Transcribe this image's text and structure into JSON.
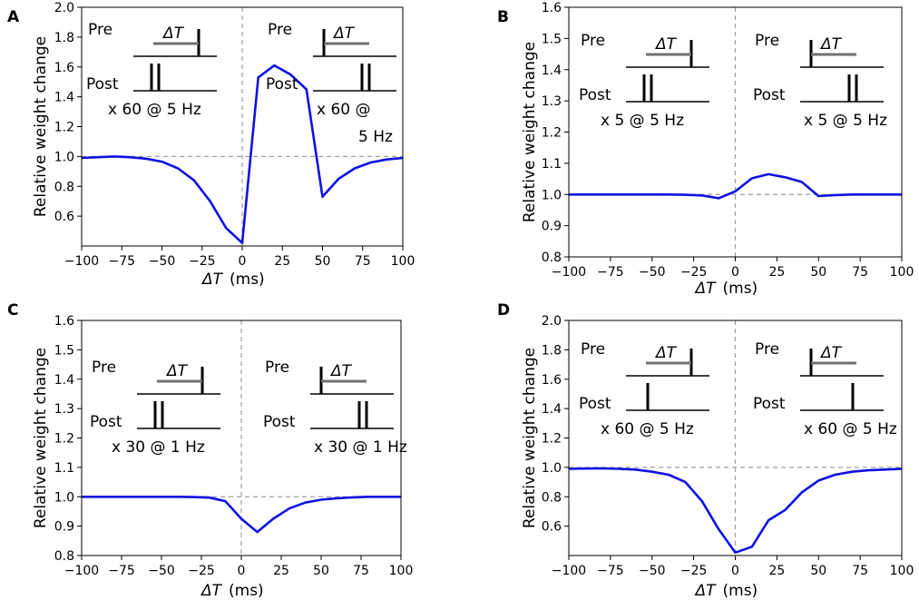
{
  "chart_data": [
    {
      "panel_label": "A",
      "type": "line",
      "xlabel_sym": "ΔT",
      "xlabel_unit": "(ms)",
      "ylabel": "Relative weight change",
      "xlim": [
        -100,
        100
      ],
      "ylim": [
        0.4,
        2.0
      ],
      "xticks": [
        -100,
        -75,
        -50,
        -25,
        0,
        25,
        50,
        75,
        100
      ],
      "xtick_labels": [
        "−100",
        "−75",
        "−50",
        "−25",
        "0",
        "25",
        "50",
        "75",
        "100"
      ],
      "yticks": [
        0.6,
        0.8,
        1.0,
        1.2,
        1.4,
        1.6,
        1.8,
        2.0
      ],
      "ytick_labels": [
        "0.6",
        "0.8",
        "1.0",
        "1.2",
        "1.4",
        "1.6",
        "1.8",
        "2.0"
      ],
      "baseline": 1.0,
      "color": "#1010e0",
      "series": [
        {
          "name": "weight change",
          "x": [
            -100,
            -90,
            -80,
            -70,
            -60,
            -50,
            -40,
            -30,
            -20,
            -10,
            0,
            10,
            20,
            30,
            40,
            50,
            60,
            70,
            80,
            90,
            100
          ],
          "y": [
            0.99,
            0.995,
            1.0,
            0.995,
            0.985,
            0.965,
            0.92,
            0.84,
            0.7,
            0.52,
            0.42,
            1.53,
            1.61,
            1.55,
            1.45,
            0.73,
            0.85,
            0.92,
            0.96,
            0.98,
            0.99
          ]
        }
      ],
      "insets": {
        "left": {
          "pre": "Pre",
          "post": "Post",
          "delta": "ΔT",
          "rep_line1": "x 60 @ 5 Hz",
          "rep_line2": ""
        },
        "right": {
          "pre": "Pre",
          "post": "Post",
          "delta": "ΔT",
          "rep_line1": "x 60 @",
          "rep_line2": "5 Hz"
        }
      }
    },
    {
      "panel_label": "B",
      "type": "line",
      "xlabel_sym": "ΔT",
      "xlabel_unit": "(ms)",
      "ylabel": "Relative weight change",
      "xlim": [
        -100,
        100
      ],
      "ylim": [
        0.8,
        1.6
      ],
      "xticks": [
        -100,
        -75,
        -50,
        -25,
        0,
        25,
        50,
        75,
        100
      ],
      "xtick_labels": [
        "−100",
        "−75",
        "−50",
        "−25",
        "0",
        "25",
        "50",
        "75",
        "100"
      ],
      "yticks": [
        0.8,
        0.9,
        1.0,
        1.1,
        1.2,
        1.3,
        1.4,
        1.5,
        1.6
      ],
      "ytick_labels": [
        "0.8",
        "0.9",
        "1.0",
        "1.1",
        "1.2",
        "1.3",
        "1.4",
        "1.5",
        "1.6"
      ],
      "baseline": 1.0,
      "color": "#1010e0",
      "series": [
        {
          "name": "weight change",
          "x": [
            -100,
            -90,
            -80,
            -70,
            -60,
            -50,
            -40,
            -30,
            -20,
            -10,
            0,
            10,
            20,
            30,
            40,
            50,
            60,
            70,
            80,
            90,
            100
          ],
          "y": [
            1.0,
            1.0,
            1.0,
            1.0,
            1.0,
            1.0,
            1.0,
            0.999,
            0.997,
            0.988,
            1.01,
            1.052,
            1.065,
            1.055,
            1.04,
            0.995,
            0.998,
            1.0,
            1.0,
            1.0,
            1.0
          ]
        }
      ],
      "insets": {
        "left": {
          "pre": "Pre",
          "post": "Post",
          "delta": "ΔT",
          "rep_line1": "x 5 @ 5 Hz",
          "rep_line2": ""
        },
        "right": {
          "pre": "Pre",
          "post": "Post",
          "delta": "ΔT",
          "rep_line1": "x 5 @ 5 Hz",
          "rep_line2": ""
        }
      }
    },
    {
      "panel_label": "C",
      "type": "line",
      "xlabel_sym": "ΔT",
      "xlabel_unit": "(ms)",
      "ylabel": "Relative weight change",
      "xlim": [
        -100,
        100
      ],
      "ylim": [
        0.8,
        1.6
      ],
      "xticks": [
        -100,
        -75,
        -50,
        -25,
        0,
        25,
        50,
        75,
        100
      ],
      "xtick_labels": [
        "−100",
        "−75",
        "−50",
        "−25",
        "0",
        "25",
        "50",
        "75",
        "100"
      ],
      "yticks": [
        0.8,
        0.9,
        1.0,
        1.1,
        1.2,
        1.3,
        1.4,
        1.5,
        1.6
      ],
      "ytick_labels": [
        "0.8",
        "0.9",
        "1.0",
        "1.1",
        "1.2",
        "1.3",
        "1.4",
        "1.5",
        "1.6"
      ],
      "baseline": 1.0,
      "color": "#1010e0",
      "series": [
        {
          "name": "weight change",
          "x": [
            -100,
            -90,
            -80,
            -70,
            -60,
            -50,
            -40,
            -30,
            -20,
            -10,
            0,
            10,
            20,
            30,
            40,
            50,
            60,
            70,
            80,
            90,
            100
          ],
          "y": [
            1.0,
            1.0,
            1.0,
            1.0,
            1.0,
            1.0,
            1.0,
            0.999,
            0.997,
            0.985,
            0.925,
            0.88,
            0.925,
            0.96,
            0.98,
            0.99,
            0.995,
            0.998,
            1.0,
            1.0,
            1.0
          ]
        }
      ],
      "insets": {
        "left": {
          "pre": "Pre",
          "post": "Post",
          "delta": "ΔT",
          "rep_line1": "x 30 @ 1 Hz",
          "rep_line2": ""
        },
        "right": {
          "pre": "Pre",
          "post": "Post",
          "delta": "ΔT",
          "rep_line1": "x 30 @ 1 Hz",
          "rep_line2": ""
        }
      }
    },
    {
      "panel_label": "D",
      "type": "line",
      "xlabel_sym": "ΔT",
      "xlabel_unit": "(ms)",
      "ylabel": "Relative weight change",
      "xlim": [
        -100,
        100
      ],
      "ylim": [
        0.4,
        2.0
      ],
      "xticks": [
        -100,
        -75,
        -50,
        -25,
        0,
        25,
        50,
        75,
        100
      ],
      "xtick_labels": [
        "−100",
        "−75",
        "−50",
        "−25",
        "0",
        "25",
        "50",
        "75",
        "100"
      ],
      "yticks": [
        0.6,
        0.8,
        1.0,
        1.2,
        1.4,
        1.6,
        1.8,
        2.0
      ],
      "ytick_labels": [
        "0.6",
        "0.8",
        "1.0",
        "1.2",
        "1.4",
        "1.6",
        "1.8",
        "2.0"
      ],
      "baseline": 1.0,
      "color": "#1010e0",
      "series": [
        {
          "name": "weight change",
          "x": [
            -100,
            -90,
            -80,
            -70,
            -60,
            -50,
            -40,
            -30,
            -20,
            -10,
            0,
            10,
            20,
            30,
            40,
            50,
            60,
            70,
            80,
            90,
            100
          ],
          "y": [
            0.99,
            0.992,
            0.993,
            0.99,
            0.985,
            0.97,
            0.95,
            0.9,
            0.77,
            0.58,
            0.42,
            0.46,
            0.64,
            0.71,
            0.83,
            0.91,
            0.95,
            0.97,
            0.98,
            0.985,
            0.99
          ]
        }
      ],
      "insets": {
        "left": {
          "pre": "Pre",
          "post": "Post",
          "delta": "ΔT",
          "rep_line1": "x 60 @ 5 Hz",
          "rep_line2": ""
        },
        "right": {
          "pre": "Pre",
          "post": "Post",
          "delta": "ΔT",
          "rep_line1": "x 60 @ 5 Hz",
          "rep_line2": ""
        }
      }
    }
  ]
}
